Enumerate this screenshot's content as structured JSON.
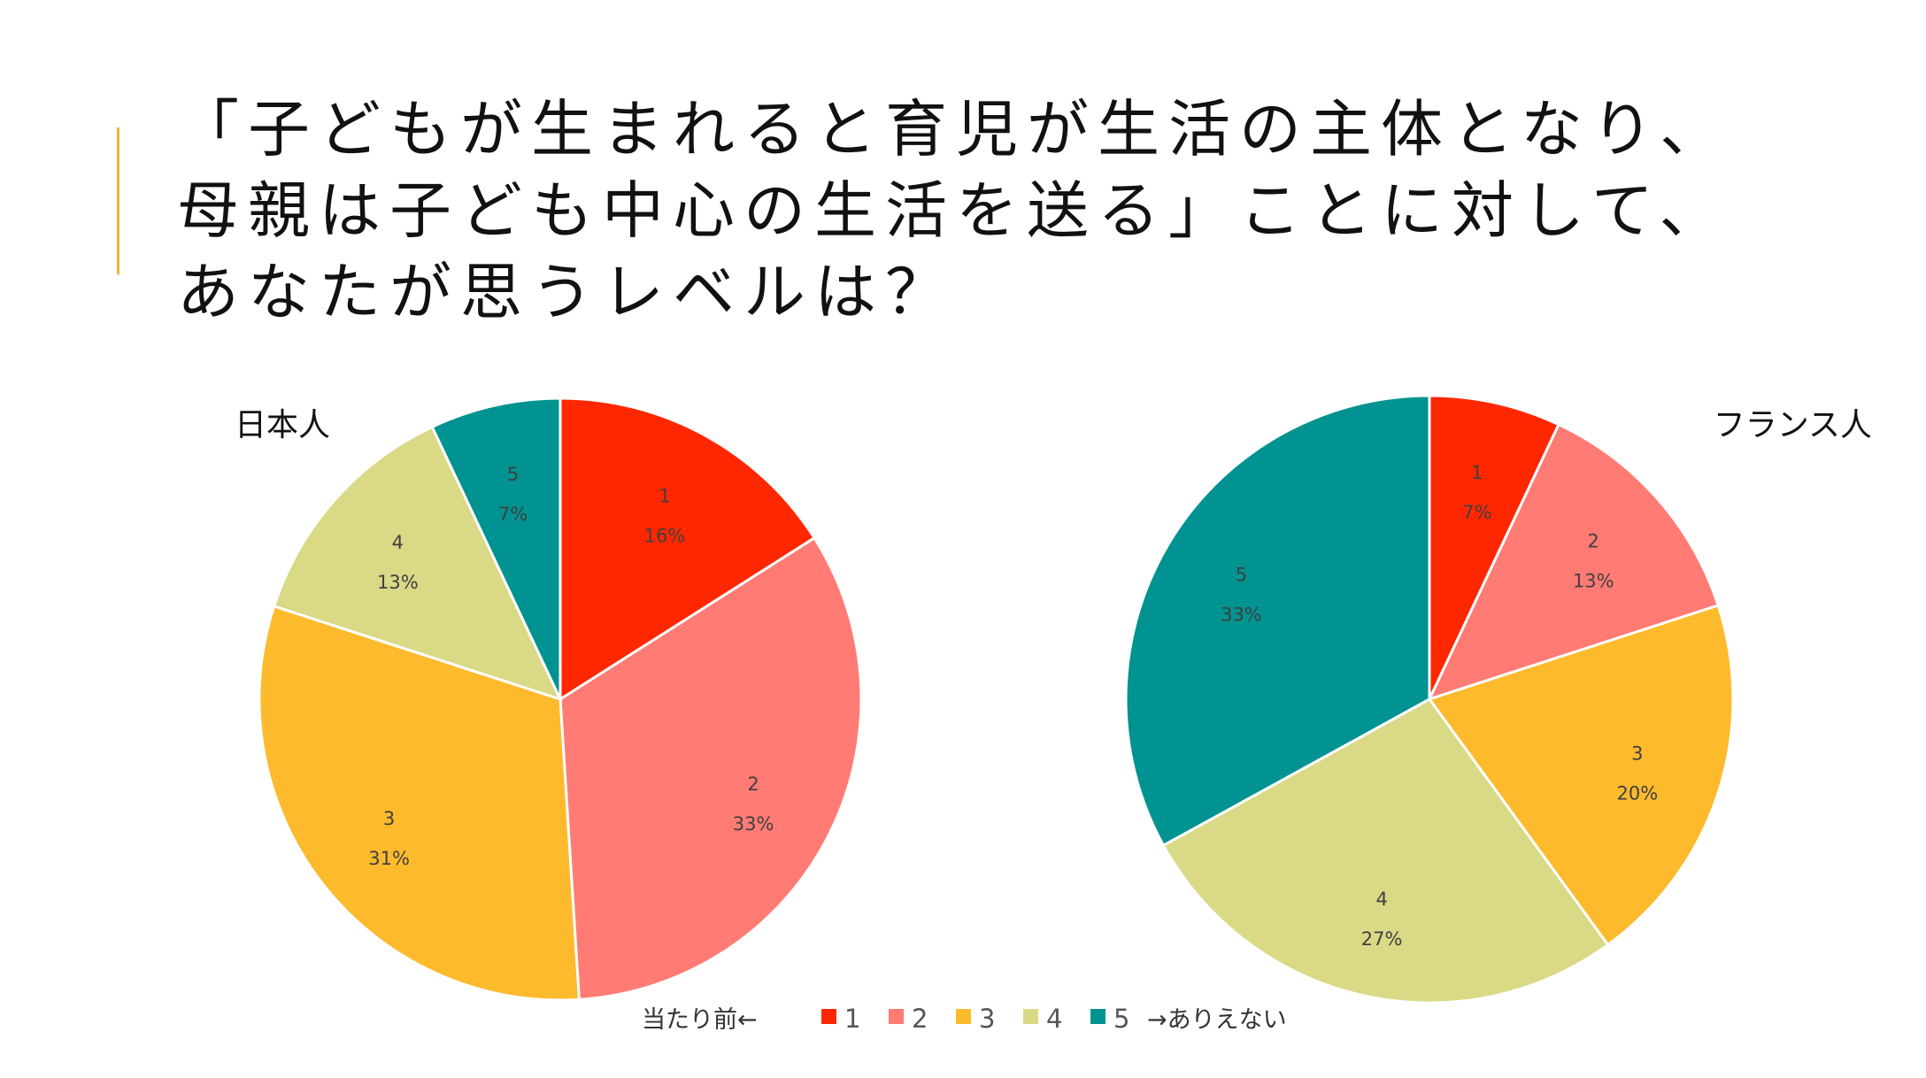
{
  "title_lines": [
    "「子どもが生まれると育児が生活の主体となり、",
    "母親は子ども中心の生活を送る」ことに対して、",
    "あなたが思うレベルは？"
  ],
  "chart_data": [
    {
      "type": "pie",
      "title": "日本人",
      "categories": [
        "1",
        "2",
        "3",
        "4",
        "5"
      ],
      "values": [
        16,
        33,
        31,
        13,
        7
      ],
      "labels": [
        "16%",
        "33%",
        "31%",
        "13%",
        "7%"
      ],
      "colors": [
        "#ff2700",
        "#ff7b74",
        "#fdba2c",
        "#d9d986",
        "#009391"
      ]
    },
    {
      "type": "pie",
      "title": "フランス人",
      "categories": [
        "1",
        "2",
        "3",
        "4",
        "5"
      ],
      "values": [
        7,
        13,
        20,
        27,
        33
      ],
      "labels": [
        "7%",
        "13%",
        "20%",
        "27%",
        "33%"
      ],
      "colors": [
        "#ff2700",
        "#ff7b74",
        "#fdba2c",
        "#d9d986",
        "#009391"
      ]
    }
  ],
  "legend": {
    "prefix": "当たり前←",
    "items": [
      {
        "label": "1",
        "color": "#ff2700"
      },
      {
        "label": "2",
        "color": "#ff7b74"
      },
      {
        "label": "3",
        "color": "#fdba2c"
      },
      {
        "label": "4",
        "color": "#d9d986"
      },
      {
        "label": "5",
        "color": "#009391"
      }
    ],
    "suffix": "→ありえない"
  }
}
